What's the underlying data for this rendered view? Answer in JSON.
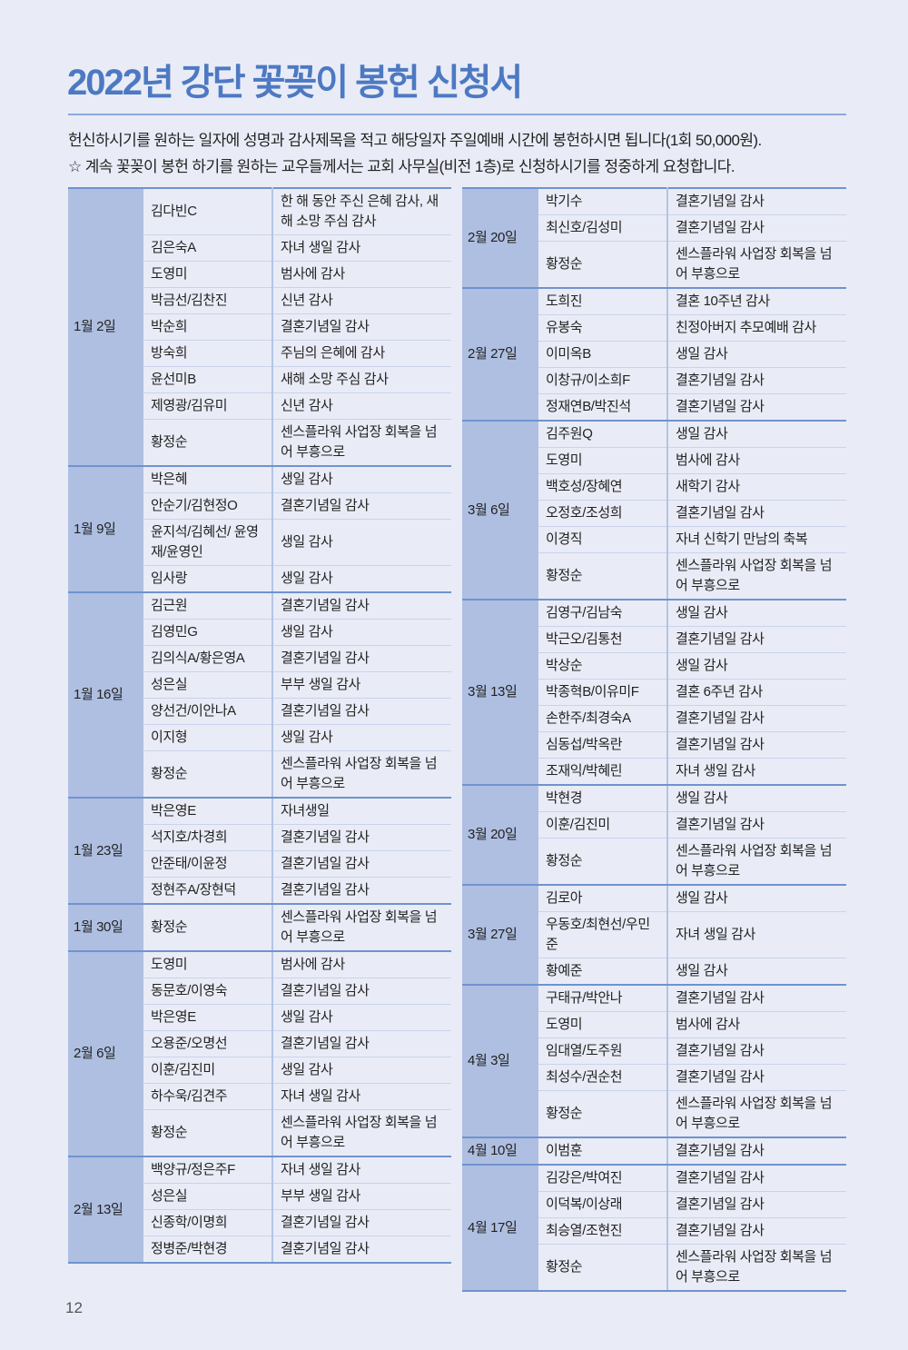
{
  "title": "2022년 강단 꽃꽂이 봉헌 신청서",
  "intro": [
    "헌신하시기를 원하는 일자에 성명과 감사제목을 적고 해당일자 주일예배 시간에 봉헌하시면 됩니다(1회 50,000원).",
    "☆ 계속 꽃꽂이 봉헌 하기를 원하는 교우들께서는 교회 사무실(비전 1층)로 신청하시기를 정중하게 요청합니다."
  ],
  "colors": {
    "title": "#4d79c3",
    "date_column": "#afbfe1",
    "background": "#e9ecf6",
    "group_rule": "#6f93cf"
  },
  "left_groups": [
    {
      "date": "1월 2일",
      "rows": [
        {
          "name": "김다빈C",
          "desc": "한 해 동안 주신 은혜 감사, 새해 소망 주심 감사"
        },
        {
          "name": "김은숙A",
          "desc": "자녀 생일 감사"
        },
        {
          "name": "도영미",
          "desc": "범사에 감사"
        },
        {
          "name": "박금선/김찬진",
          "desc": "신년 감사"
        },
        {
          "name": "박순희",
          "desc": "결혼기념일 감사"
        },
        {
          "name": "방숙희",
          "desc": "주님의 은혜에 감사"
        },
        {
          "name": "윤선미B",
          "desc": "새해 소망 주심 감사"
        },
        {
          "name": "제영광/김유미",
          "desc": "신년 감사"
        },
        {
          "name": "황정순",
          "desc": "센스플라워 사업장 회복을 넘어 부흥으로"
        }
      ]
    },
    {
      "date": "1월 9일",
      "rows": [
        {
          "name": "박은혜",
          "desc": "생일 감사"
        },
        {
          "name": "안순기/김현정O",
          "desc": "결혼기념일 감사"
        },
        {
          "name": "윤지석/김혜선/ 윤영재/윤영인",
          "desc": "생일 감사"
        },
        {
          "name": "임사랑",
          "desc": "생일 감사"
        }
      ]
    },
    {
      "date": "1월 16일",
      "rows": [
        {
          "name": "김근원",
          "desc": "결혼기념일 감사"
        },
        {
          "name": "김영민G",
          "desc": "생일 감사"
        },
        {
          "name": "김의식A/황은영A",
          "desc": "결혼기념일 감사"
        },
        {
          "name": "성은실",
          "desc": "부부 생일 감사"
        },
        {
          "name": "양선건/이안나A",
          "desc": "결혼기념일 감사"
        },
        {
          "name": "이지형",
          "desc": "생일 감사"
        },
        {
          "name": "황정순",
          "desc": "센스플라워 사업장 회복을 넘어 부흥으로"
        }
      ]
    },
    {
      "date": "1월 23일",
      "rows": [
        {
          "name": "박은영E",
          "desc": "자녀생일"
        },
        {
          "name": "석지호/차경희",
          "desc": "결혼기념일 감사"
        },
        {
          "name": "안준태/이윤정",
          "desc": "결혼기념일 감사"
        },
        {
          "name": "정현주A/장현덕",
          "desc": "결혼기념일 감사"
        }
      ]
    },
    {
      "date": "1월 30일",
      "rows": [
        {
          "name": "황정순",
          "desc": "센스플라워 사업장 회복을 넘어 부흥으로"
        }
      ]
    },
    {
      "date": "2월 6일",
      "rows": [
        {
          "name": "도영미",
          "desc": "범사에 감사"
        },
        {
          "name": "동문호/이영숙",
          "desc": "결혼기념일 감사"
        },
        {
          "name": "박은영E",
          "desc": "생일 감사"
        },
        {
          "name": "오용준/오명선",
          "desc": "결혼기념일 감사"
        },
        {
          "name": "이훈/김진미",
          "desc": "생일 감사"
        },
        {
          "name": "하수욱/김견주",
          "desc": "자녀 생일 감사"
        },
        {
          "name": "황정순",
          "desc": "센스플라워 사업장 회복을 넘어 부흥으로"
        }
      ]
    },
    {
      "date": "2월 13일",
      "rows": [
        {
          "name": "백양규/정은주F",
          "desc": "자녀 생일 감사"
        },
        {
          "name": "성은실",
          "desc": "부부 생일 감사"
        },
        {
          "name": "신종학/이명희",
          "desc": "결혼기념일 감사"
        },
        {
          "name": "정병준/박현경",
          "desc": "결혼기념일 감사"
        }
      ]
    }
  ],
  "right_groups": [
    {
      "date": "2월 20일",
      "rows": [
        {
          "name": "박기수",
          "desc": "결혼기념일 감사"
        },
        {
          "name": "최신호/김성미",
          "desc": "결혼기념일 감사"
        },
        {
          "name": "황정순",
          "desc": "센스플라워 사업장 회복을 넘어 부흥으로"
        }
      ]
    },
    {
      "date": "2월 27일",
      "rows": [
        {
          "name": "도희진",
          "desc": "결혼 10주년 감사"
        },
        {
          "name": "유봉숙",
          "desc": "친정아버지 추모예배 감사"
        },
        {
          "name": "이미옥B",
          "desc": "생일 감사"
        },
        {
          "name": "이창규/이소희F",
          "desc": "결혼기념일 감사"
        },
        {
          "name": "정재연B/박진석",
          "desc": "결혼기념일 감사"
        }
      ]
    },
    {
      "date": "3월 6일",
      "rows": [
        {
          "name": "김주원Q",
          "desc": "생일 감사"
        },
        {
          "name": "도영미",
          "desc": "범사에 감사"
        },
        {
          "name": "백호성/장혜연",
          "desc": "새학기 감사"
        },
        {
          "name": "오정호/조성희",
          "desc": "결혼기념일 감사"
        },
        {
          "name": "이경직",
          "desc": "자녀 신학기 만남의 축복"
        },
        {
          "name": "황정순",
          "desc": "센스플라워 사업장 회복을 넘어 부흥으로"
        }
      ]
    },
    {
      "date": "3월 13일",
      "rows": [
        {
          "name": "김영구/김남숙",
          "desc": "생일 감사"
        },
        {
          "name": "박근오/김통천",
          "desc": "결혼기념일 감사"
        },
        {
          "name": "박상순",
          "desc": "생일 감사"
        },
        {
          "name": "박종혁B/이유미F",
          "desc": "결혼 6주년 감사"
        },
        {
          "name": "손한주/최경숙A",
          "desc": "결혼기념일 감사"
        },
        {
          "name": "심동섭/박옥란",
          "desc": "결혼기념일 감사"
        },
        {
          "name": "조재익/박혜린",
          "desc": "자녀 생일 감사"
        }
      ]
    },
    {
      "date": "3월 20일",
      "rows": [
        {
          "name": "박현경",
          "desc": "생일 감사"
        },
        {
          "name": "이훈/김진미",
          "desc": "결혼기념일 감사"
        },
        {
          "name": "황정순",
          "desc": "센스플라워 사업장 회복을 넘어 부흥으로"
        }
      ]
    },
    {
      "date": "3월 27일",
      "rows": [
        {
          "name": "김로아",
          "desc": "생일 감사"
        },
        {
          "name": "우동호/최현선/우민준",
          "desc": "자녀 생일 감사"
        },
        {
          "name": "황예준",
          "desc": "생일 감사"
        }
      ]
    },
    {
      "date": "4월 3일",
      "rows": [
        {
          "name": "구태규/박안나",
          "desc": "결혼기념일 감사"
        },
        {
          "name": "도영미",
          "desc": "범사에 감사"
        },
        {
          "name": "임대열/도주원",
          "desc": "결혼기념일 감사"
        },
        {
          "name": "최성수/권순천",
          "desc": "결혼기념일 감사"
        },
        {
          "name": "황정순",
          "desc": "센스플라워 사업장 회복을 넘어 부흥으로"
        }
      ]
    },
    {
      "date": "4월 10일",
      "rows": [
        {
          "name": "이범훈",
          "desc": "결혼기념일 감사"
        }
      ]
    },
    {
      "date": "4월 17일",
      "rows": [
        {
          "name": "김강은/박여진",
          "desc": "결혼기념일 감사"
        },
        {
          "name": "이덕복/이상래",
          "desc": "결혼기념일 감사"
        },
        {
          "name": "최승열/조현진",
          "desc": "결혼기념일 감사"
        },
        {
          "name": "황정순",
          "desc": "센스플라워 사업장 회복을 넘어 부흥으로"
        }
      ]
    }
  ],
  "page_number": "12"
}
